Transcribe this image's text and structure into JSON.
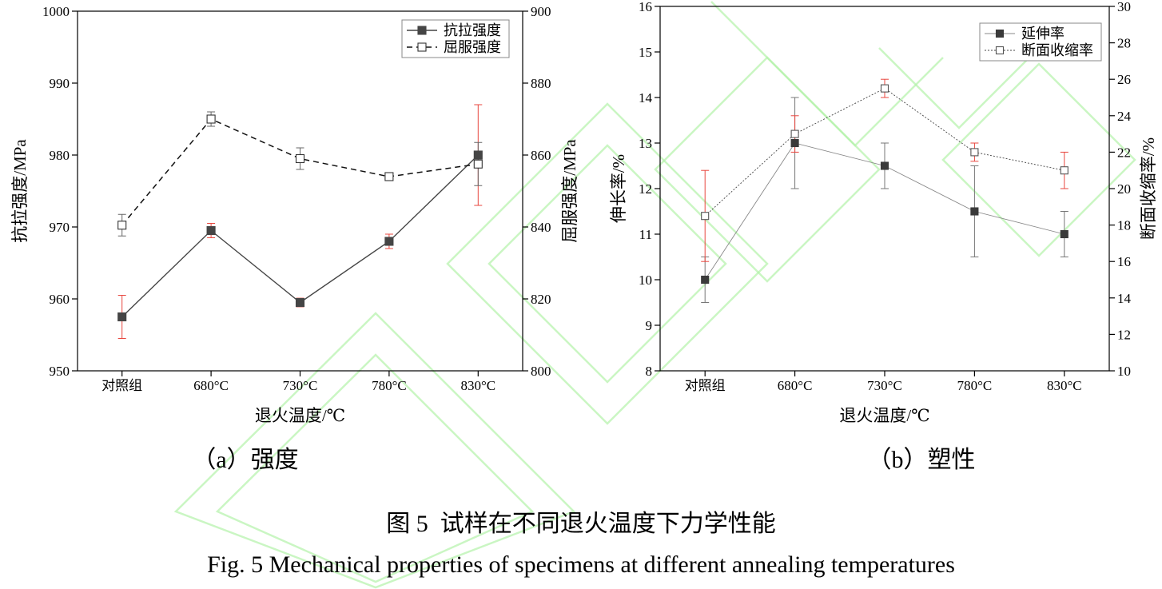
{
  "figure": {
    "caption_cn": "图 5  试样在不同退火温度下力学性能",
    "caption_en": "Fig. 5 Mechanical properties of specimens at different annealing temperatures"
  },
  "chart_data": [
    {
      "type": "line",
      "panel_label": "（a）强度",
      "categories": [
        "对照组",
        "680°C",
        "730°C",
        "780°C",
        "830°C"
      ],
      "xlabel": "退火温度/℃",
      "ylabel": "抗拉强度/MPa",
      "ylim": [
        950,
        1000
      ],
      "yticks": [
        950,
        960,
        970,
        980,
        990,
        1000
      ],
      "y2label": "屈服强度/MPa",
      "y2lim": [
        800,
        900
      ],
      "y2ticks": [
        800,
        820,
        840,
        860,
        880,
        900
      ],
      "grid": false,
      "legend_position": "top-right",
      "series": [
        {
          "name": "抗拉强度",
          "y2": false,
          "marker_filled": true,
          "values": [
            957.5,
            969.5,
            959.5,
            968,
            980
          ],
          "error": [
            3,
            1,
            0.6,
            1,
            7
          ],
          "color": "#454545",
          "marker_color": "#454545",
          "error_color": "#e8473f"
        },
        {
          "name": "屈服强度",
          "y2": true,
          "marker_filled": false,
          "values": [
            840.5,
            870,
            859,
            854,
            857.5
          ],
          "error": [
            3,
            2,
            3,
            0.5,
            6
          ],
          "color": "#111111",
          "marker_color": "#333333",
          "error_color": "#666666"
        }
      ]
    },
    {
      "type": "line",
      "panel_label": "（b）塑性",
      "categories": [
        "对照组",
        "680°C",
        "730°C",
        "780°C",
        "830°C"
      ],
      "xlabel": "退火温度/℃",
      "ylabel": "伸长率/%",
      "ylim": [
        8,
        16
      ],
      "yticks": [
        8,
        9,
        10,
        11,
        12,
        13,
        14,
        15,
        16
      ],
      "y2label": "断面收缩率/%",
      "y2lim": [
        10,
        30
      ],
      "y2ticks": [
        10,
        12,
        14,
        16,
        18,
        20,
        22,
        24,
        26,
        28,
        30
      ],
      "grid": false,
      "legend_position": "top-right",
      "series": [
        {
          "name": "延伸率",
          "y2": false,
          "marker_filled": true,
          "values": [
            10,
            13,
            12.5,
            11.5,
            11
          ],
          "error": [
            0.5,
            1,
            0.5,
            1,
            0.5
          ],
          "color": "#888888",
          "marker_color": "#3a3a3a",
          "error_color": "#777777"
        },
        {
          "name": "断面收缩率",
          "y2": true,
          "marker_filled": false,
          "values": [
            18.5,
            23,
            25.5,
            22,
            21
          ],
          "error": [
            2.5,
            1,
            0.5,
            0.5,
            1
          ],
          "color": "#444444",
          "marker_color": "#555555",
          "error_color": "#e8473f"
        }
      ]
    }
  ]
}
